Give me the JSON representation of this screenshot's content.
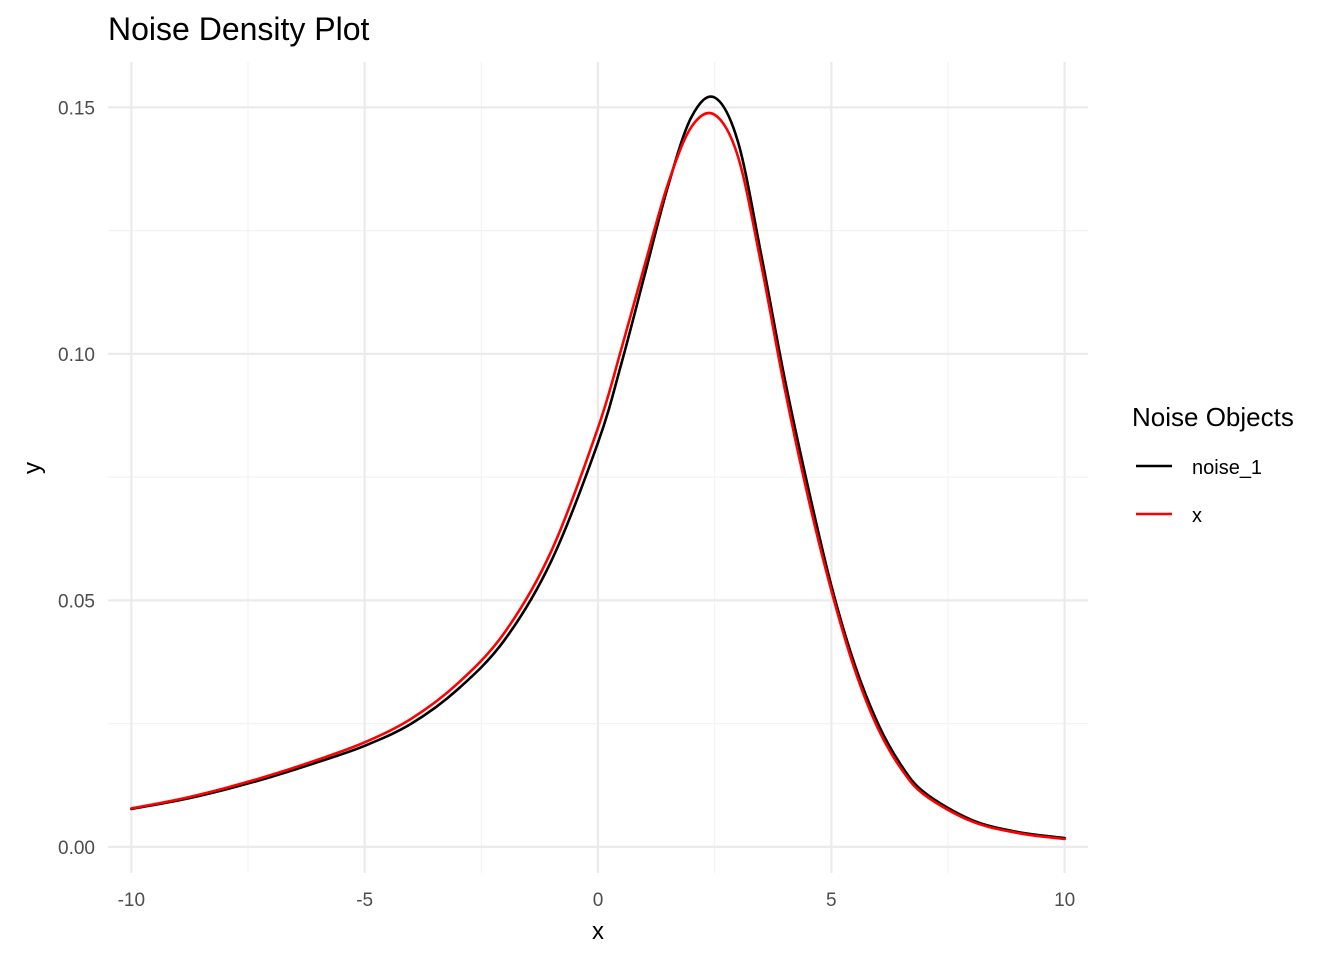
{
  "chart_data": {
    "type": "line",
    "title": "Noise Density Plot",
    "xlabel": "x",
    "ylabel": "y",
    "xlim": [
      -10.5,
      10.5
    ],
    "ylim": [
      -0.0053,
      0.1592
    ],
    "x_ticks": [
      -10,
      -5,
      0,
      5,
      10
    ],
    "x_tick_labels": [
      "-10",
      "-5",
      "0",
      "5",
      "10"
    ],
    "y_ticks": [
      0,
      0.05,
      0.1,
      0.15
    ],
    "y_tick_labels": [
      "0.00",
      "0.05",
      "0.10",
      "0.15"
    ],
    "grid": true,
    "legend": {
      "title": "Noise Objects",
      "placement": "right"
    },
    "x": [
      -10,
      -9,
      -8,
      -7,
      -6,
      -5,
      -4,
      -3,
      -2,
      -1,
      0,
      0.5,
      1,
      1.5,
      2,
      2.5,
      3,
      3.5,
      4,
      4.5,
      5,
      5.5,
      6,
      6.5,
      7,
      8,
      9,
      10
    ],
    "series": [
      {
        "name": "noise_1",
        "color": "#000000",
        "values": [
          0.0077,
          0.0094,
          0.0116,
          0.0142,
          0.0172,
          0.0205,
          0.025,
          0.032,
          0.042,
          0.058,
          0.082,
          0.098,
          0.116,
          0.134,
          0.148,
          0.152,
          0.143,
          0.12,
          0.095,
          0.073,
          0.053,
          0.037,
          0.025,
          0.0165,
          0.011,
          0.0055,
          0.003,
          0.0018
        ]
      },
      {
        "name": "x",
        "color": "#ff0000",
        "values": [
          0.0078,
          0.0096,
          0.0119,
          0.0146,
          0.0177,
          0.0212,
          0.026,
          0.0332,
          0.0435,
          0.06,
          0.085,
          0.101,
          0.118,
          0.1345,
          0.146,
          0.1485,
          0.14,
          0.118,
          0.093,
          0.071,
          0.052,
          0.036,
          0.024,
          0.0158,
          0.0105,
          0.0052,
          0.0028,
          0.0016
        ]
      }
    ]
  }
}
